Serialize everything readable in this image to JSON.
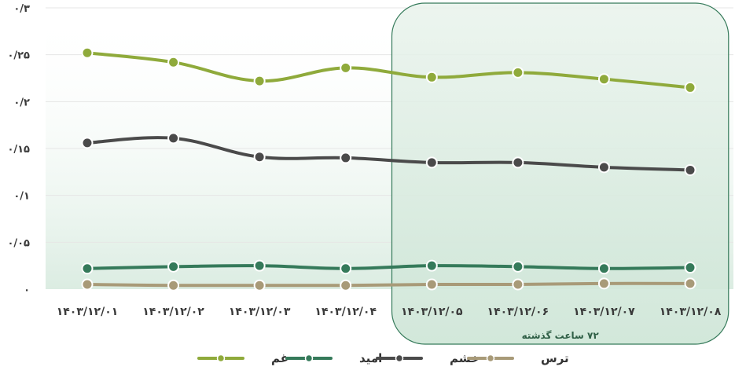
{
  "chart_data": {
    "type": "line",
    "categories": [
      "۱۴۰۳/۱۲/۰۱",
      "۱۴۰۳/۱۲/۰۲",
      "۱۴۰۳/۱۲/۰۳",
      "۱۴۰۳/۱۲/۰۴",
      "۱۴۰۳/۱۲/۰۵",
      "۱۴۰۳/۱۲/۰۶",
      "۱۴۰۳/۱۲/۰۷",
      "۱۴۰۳/۱۲/۰۸"
    ],
    "yticks": [
      0,
      0.05,
      0.1,
      0.15,
      0.2,
      0.25,
      0.3
    ],
    "ytick_labels": [
      "۰",
      "۰/۰۵",
      "۰/۱",
      "۰/۱۵",
      "۰/۲",
      "۰/۲۵",
      "۰/۳"
    ],
    "ylim": [
      0,
      0.3
    ],
    "grid": true,
    "legend_position": "bottom",
    "series": [
      {
        "name": "غم",
        "color": "#8faa3b",
        "values": [
          0.252,
          0.242,
          0.222,
          0.236,
          0.226,
          0.231,
          0.224,
          0.215
        ]
      },
      {
        "name": "امید",
        "color": "#357a5a",
        "values": [
          0.022,
          0.024,
          0.025,
          0.022,
          0.025,
          0.024,
          0.022,
          0.023
        ]
      },
      {
        "name": "خشم",
        "color": "#4a4a4a",
        "values": [
          0.156,
          0.161,
          0.141,
          0.14,
          0.135,
          0.135,
          0.13,
          0.127
        ]
      },
      {
        "name": "ترس",
        "color": "#a89a78",
        "values": [
          0.005,
          0.004,
          0.004,
          0.004,
          0.005,
          0.005,
          0.006,
          0.006
        ]
      }
    ],
    "annotation": {
      "label": "۷۲ ساعت گذشته",
      "start_category": "۱۴۰۳/۱۲/۰۵",
      "end_category": "۱۴۰۳/۱۲/۰۸",
      "color": "#357a5a"
    }
  }
}
